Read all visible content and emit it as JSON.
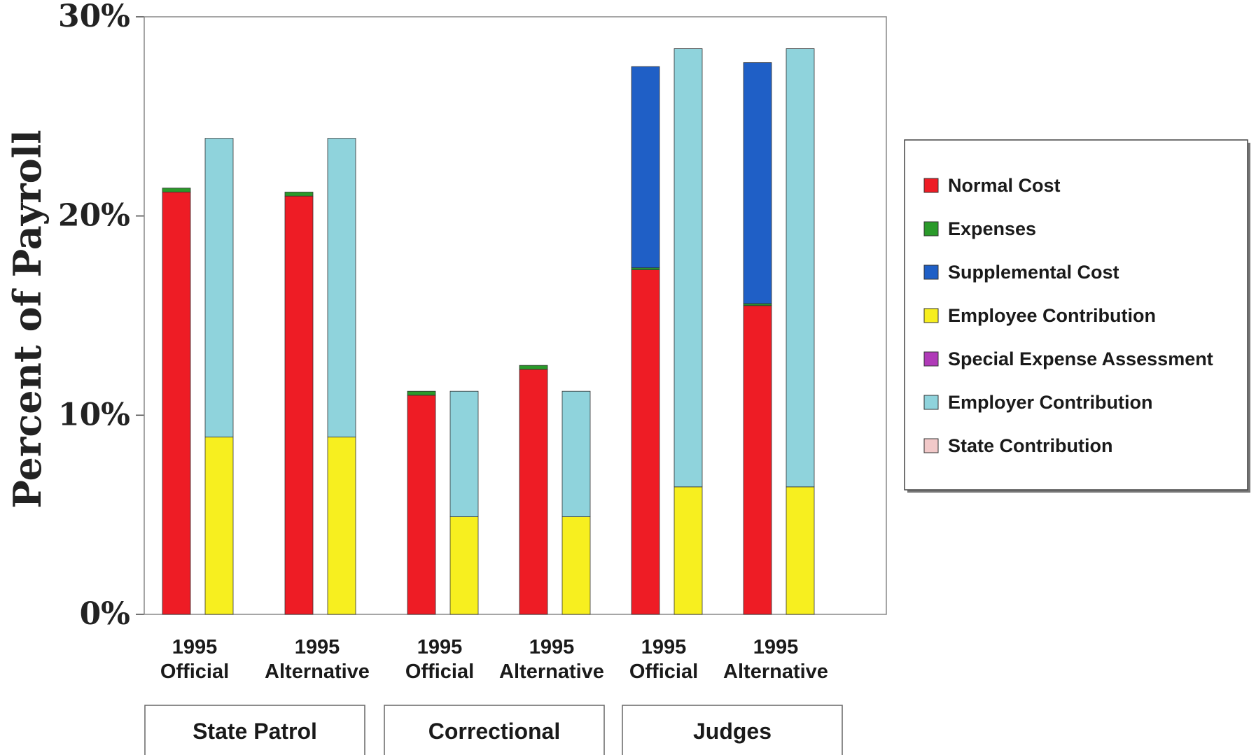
{
  "chart_data": {
    "type": "bar",
    "stacked": true,
    "ylabel": "Percent of Payroll",
    "ylim": [
      0,
      30
    ],
    "yticks": [
      "0%",
      "10%",
      "20%",
      "30%"
    ],
    "grid": false,
    "legend_position": "right",
    "groups": [
      {
        "name": "State Patrol",
        "categories": [
          {
            "line1": "1995",
            "line2": "Official",
            "cost_bar": [
              {
                "series": "Normal Cost",
                "value": 21.2
              },
              {
                "series": "Expenses",
                "value": 0.2
              }
            ],
            "contribution_bar": [
              {
                "series": "Employee Contribution",
                "value": 8.9
              },
              {
                "series": "Employer Contribution",
                "value": 15.0
              }
            ]
          },
          {
            "line1": "1995",
            "line2": "Alternative",
            "cost_bar": [
              {
                "series": "Normal Cost",
                "value": 21.0
              },
              {
                "series": "Expenses",
                "value": 0.2
              }
            ],
            "contribution_bar": [
              {
                "series": "Employee Contribution",
                "value": 8.9
              },
              {
                "series": "Employer Contribution",
                "value": 15.0
              }
            ]
          }
        ]
      },
      {
        "name": "Correctional",
        "categories": [
          {
            "line1": "1995",
            "line2": "Official",
            "cost_bar": [
              {
                "series": "Normal Cost",
                "value": 11.0
              },
              {
                "series": "Expenses",
                "value": 0.2
              }
            ],
            "contribution_bar": [
              {
                "series": "Employee Contribution",
                "value": 4.9
              },
              {
                "series": "Employer Contribution",
                "value": 6.3
              }
            ]
          },
          {
            "line1": "1995",
            "line2": "Alternative",
            "cost_bar": [
              {
                "series": "Normal Cost",
                "value": 12.3
              },
              {
                "series": "Expenses",
                "value": 0.2
              }
            ],
            "contribution_bar": [
              {
                "series": "Employee Contribution",
                "value": 4.9
              },
              {
                "series": "Employer Contribution",
                "value": 6.3
              }
            ]
          }
        ]
      },
      {
        "name": "Judges",
        "categories": [
          {
            "line1": "1995",
            "line2": "Official",
            "cost_bar": [
              {
                "series": "Normal Cost",
                "value": 17.3
              },
              {
                "series": "Expenses",
                "value": 0.1
              },
              {
                "series": "Supplemental Cost",
                "value": 10.1
              }
            ],
            "contribution_bar": [
              {
                "series": "Employee Contribution",
                "value": 6.4
              },
              {
                "series": "Employer Contribution",
                "value": 22.0
              }
            ]
          },
          {
            "line1": "1995",
            "line2": "Alternative",
            "cost_bar": [
              {
                "series": "Normal Cost",
                "value": 15.5
              },
              {
                "series": "Expenses",
                "value": 0.1
              },
              {
                "series": "Supplemental Cost",
                "value": 12.1
              }
            ],
            "contribution_bar": [
              {
                "series": "Employee Contribution",
                "value": 6.4
              },
              {
                "series": "Employer Contribution",
                "value": 22.0
              }
            ]
          }
        ]
      }
    ],
    "legend": [
      {
        "name": "Normal Cost",
        "color": "#ee1c25"
      },
      {
        "name": "Expenses",
        "color": "#2a9a2a"
      },
      {
        "name": "Supplemental Cost",
        "color": "#1f5fc6"
      },
      {
        "name": "Employee Contribution",
        "color": "#f7ef1f"
      },
      {
        "name": "Special Expense Assessment",
        "color": "#b03ab8"
      },
      {
        "name": "Employer Contribution",
        "color": "#8fd3dc"
      },
      {
        "name": "State Contribution",
        "color": "#f2c9c9"
      }
    ]
  }
}
